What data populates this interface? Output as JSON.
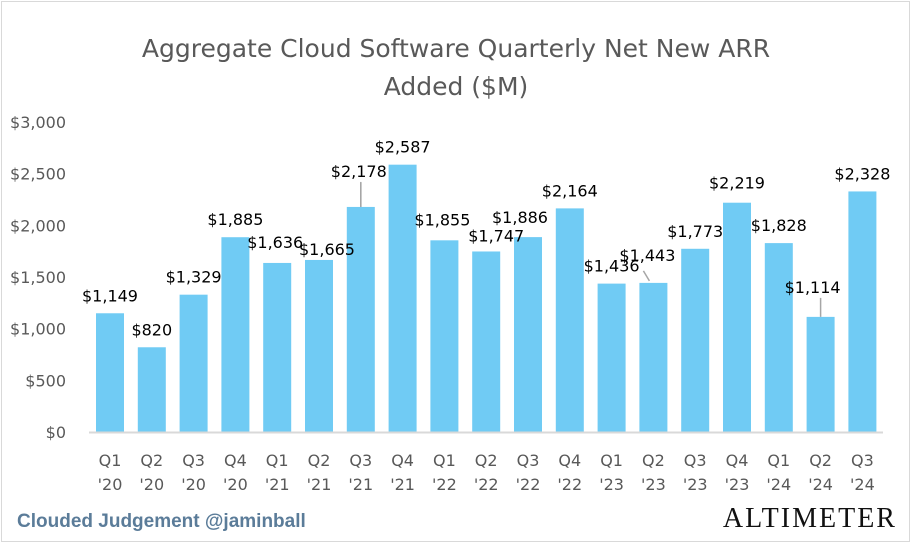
{
  "chart_data": {
    "type": "bar",
    "title": [
      "Aggregate Cloud Software Quarterly Net New ARR",
      "Added ($M)"
    ],
    "xlabel": "",
    "ylabel": "",
    "ylim": [
      0,
      3000
    ],
    "yticks": [
      0,
      500,
      1000,
      1500,
      2000,
      2500,
      3000
    ],
    "ytick_labels": [
      "$0",
      "$500",
      "$1,000",
      "$1,500",
      "$2,000",
      "$2,500",
      "$3,000"
    ],
    "categories": [
      [
        "Q1",
        "'20"
      ],
      [
        "Q2",
        "'20"
      ],
      [
        "Q3",
        "'20"
      ],
      [
        "Q4",
        "'20"
      ],
      [
        "Q1",
        "'21"
      ],
      [
        "Q2",
        "'21"
      ],
      [
        "Q3",
        "'21"
      ],
      [
        "Q4",
        "'21"
      ],
      [
        "Q1",
        "'22"
      ],
      [
        "Q2",
        "'22"
      ],
      [
        "Q3",
        "'22"
      ],
      [
        "Q4",
        "'22"
      ],
      [
        "Q1",
        "'23"
      ],
      [
        "Q2",
        "'23"
      ],
      [
        "Q3",
        "'23"
      ],
      [
        "Q4",
        "'23"
      ],
      [
        "Q1",
        "'24"
      ],
      [
        "Q2",
        "'24"
      ],
      [
        "Q3",
        "'24"
      ]
    ],
    "values": [
      1149,
      820,
      1329,
      1885,
      1636,
      1665,
      2178,
      2587,
      1855,
      1747,
      1886,
      2164,
      1436,
      1443,
      1773,
      2219,
      1828,
      1114,
      2328
    ],
    "data_labels": [
      "$1,149",
      "$820",
      "$1,329",
      "$1,885",
      "$1,636",
      "$1,665",
      "$2,178",
      "$2,587",
      "$1,855",
      "$1,747",
      "$1,886",
      "$2,164",
      "$1,436",
      "$1,443",
      "$1,773",
      "$2,219",
      "$1,828",
      "$1,114",
      "$2,328"
    ],
    "bar_color": "#70cbf4",
    "grid": false,
    "legend": "none"
  },
  "footer": {
    "source": "Clouded Judgement @jaminball",
    "logo": "ALTIMETER"
  }
}
